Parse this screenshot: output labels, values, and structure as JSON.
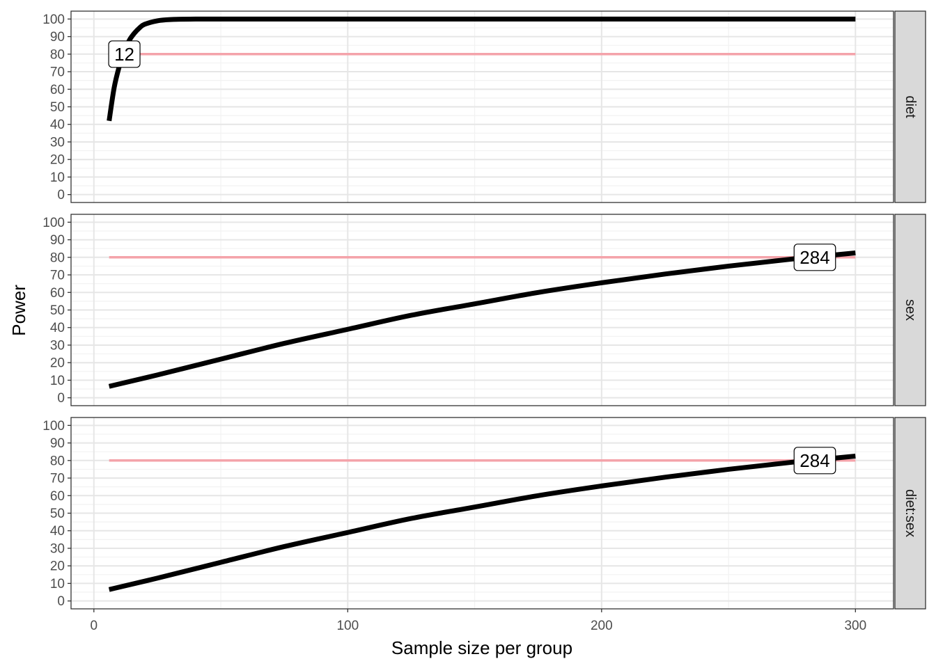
{
  "chart_data": {
    "type": "line",
    "xlabel": "Sample size per group",
    "ylabel": "Power",
    "xlim": [
      -9,
      315
    ],
    "ylim": [
      -4.5,
      104.5
    ],
    "x_ticks": [
      0,
      100,
      200,
      300
    ],
    "x_tick_labels": [
      "0",
      "100",
      "200",
      "300"
    ],
    "y_ticks": [
      0,
      10,
      20,
      30,
      40,
      50,
      60,
      70,
      80,
      90,
      100
    ],
    "y_tick_labels": [
      "0",
      "10",
      "20",
      "30",
      "40",
      "50",
      "60",
      "70",
      "80",
      "90",
      "100"
    ],
    "grid": true,
    "target_power": 80,
    "target_color": "#f4a3aa",
    "curve_color": "#000000",
    "panels": [
      {
        "name": "diet",
        "threshold_label": "12",
        "threshold_x": 12,
        "threshold_y": 80,
        "x": [
          6,
          8,
          10,
          12,
          14,
          16,
          18,
          20,
          25,
          30,
          40,
          60,
          100,
          150,
          200,
          250,
          300
        ],
        "y": [
          42,
          61,
          73,
          82,
          88,
          92,
          95,
          97,
          99,
          99.7,
          100,
          100,
          100,
          100,
          100,
          100,
          100
        ]
      },
      {
        "name": "sex",
        "threshold_label": "284",
        "threshold_x": 284,
        "threshold_y": 80,
        "x": [
          6,
          25,
          50,
          75,
          100,
          125,
          150,
          175,
          200,
          225,
          250,
          275,
          300
        ],
        "y": [
          6.5,
          13,
          22,
          31,
          39,
          47,
          53.5,
          60,
          65.5,
          70.5,
          75,
          79,
          82.5
        ]
      },
      {
        "name": "diet:sex",
        "threshold_label": "284",
        "threshold_x": 284,
        "threshold_y": 80,
        "x": [
          6,
          25,
          50,
          75,
          100,
          125,
          150,
          175,
          200,
          225,
          250,
          275,
          300
        ],
        "y": [
          6.5,
          13,
          22,
          31,
          39,
          47,
          53.5,
          60,
          65.5,
          70.5,
          75,
          79,
          82.5
        ]
      }
    ]
  }
}
